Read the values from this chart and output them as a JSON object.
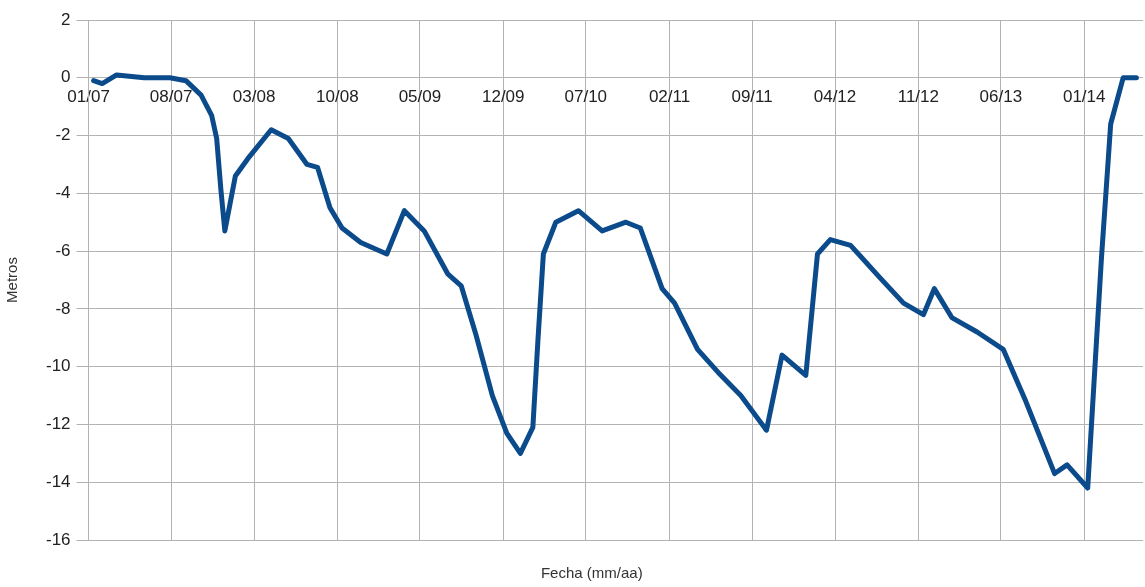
{
  "chart_data": {
    "type": "line",
    "xlabel": "Fecha (mm/aa)",
    "ylabel": "Metros",
    "x": [
      "2007-01-14",
      "2007-02-05",
      "2007-03-14",
      "2007-05-24",
      "2007-07-29",
      "2007-09-08",
      "2007-10-17",
      "2007-11-13",
      "2007-11-26",
      "2007-12-07",
      "2007-12-17",
      "2008-01-13",
      "2008-02-14",
      "2008-04-14",
      "2008-05-28",
      "2008-07-15",
      "2008-08-11",
      "2008-09-12",
      "2008-10-13",
      "2008-11-30",
      "2009-02-05",
      "2009-03-22",
      "2009-05-12",
      "2009-07-12",
      "2009-08-15",
      "2009-09-22",
      "2009-11-03",
      "2009-12-10",
      "2010-01-14",
      "2010-02-15",
      "2010-02-28",
      "2010-03-14",
      "2010-04-15",
      "2010-06-12",
      "2010-08-12",
      "2010-10-12",
      "2010-11-18",
      "2011-01-13",
      "2011-02-14",
      "2011-04-14",
      "2011-06-06",
      "2011-08-03",
      "2011-10-08",
      "2011-11-17",
      "2012-01-17",
      "2012-02-16",
      "2012-03-20",
      "2012-05-11",
      "2012-07-24",
      "2012-09-24",
      "2012-11-14",
      "2012-12-12",
      "2013-01-26",
      "2013-04-01",
      "2013-06-07",
      "2013-08-04",
      "2013-10-17",
      "2013-11-18",
      "2014-01-10",
      "2014-02-14",
      "2014-03-10",
      "2014-04-11",
      "2014-05-15"
    ],
    "series": [
      {
        "color": "#0b4a8b",
        "values": [
          -0.1,
          -0.2,
          0.1,
          0.0,
          0.0,
          -0.1,
          -0.6,
          -1.3,
          -2.1,
          -3.9,
          -5.3,
          -3.4,
          -2.8,
          -1.8,
          -2.1,
          -3.0,
          -3.1,
          -4.5,
          -5.2,
          -5.7,
          -6.1,
          -4.6,
          -5.3,
          -6.8,
          -7.2,
          -8.9,
          -11.0,
          -12.3,
          -13.0,
          -12.1,
          -9.1,
          -6.1,
          -5.0,
          -4.6,
          -5.3,
          -5.0,
          -5.2,
          -7.3,
          -7.8,
          -9.4,
          -10.2,
          -11.0,
          -12.2,
          -9.6,
          -10.3,
          -6.1,
          -5.6,
          -5.8,
          -6.9,
          -7.8,
          -8.2,
          -7.3,
          -8.3,
          -8.8,
          -9.4,
          -11.2,
          -13.7,
          -13.4,
          -14.2,
          -6.3,
          -1.6,
          0.0,
          0.0
        ]
      }
    ],
    "xlim": [
      "2007-01-01",
      "2014-06-01"
    ],
    "xticks": [
      {
        "value": "2007-01-01",
        "label": "01/07"
      },
      {
        "value": "2007-08-01",
        "label": "08/07"
      },
      {
        "value": "2008-03-01",
        "label": "03/08"
      },
      {
        "value": "2008-10-01",
        "label": "10/08"
      },
      {
        "value": "2009-05-01",
        "label": "05/09"
      },
      {
        "value": "2009-12-01",
        "label": "12/09"
      },
      {
        "value": "2010-07-01",
        "label": "07/10"
      },
      {
        "value": "2011-02-01",
        "label": "02/11"
      },
      {
        "value": "2011-09-01",
        "label": "09/11"
      },
      {
        "value": "2012-04-01",
        "label": "04/12"
      },
      {
        "value": "2012-11-01",
        "label": "11/12"
      },
      {
        "value": "2013-06-01",
        "label": "06/13"
      },
      {
        "value": "2014-01-01",
        "label": "01/14"
      }
    ],
    "ylim": [
      -16,
      2
    ],
    "yticks": [
      -16,
      -14,
      -12,
      -10,
      -8,
      -6,
      -4,
      -2,
      0,
      2
    ],
    "grid": true,
    "legend": false,
    "marker": "none",
    "line_style": "solid"
  }
}
